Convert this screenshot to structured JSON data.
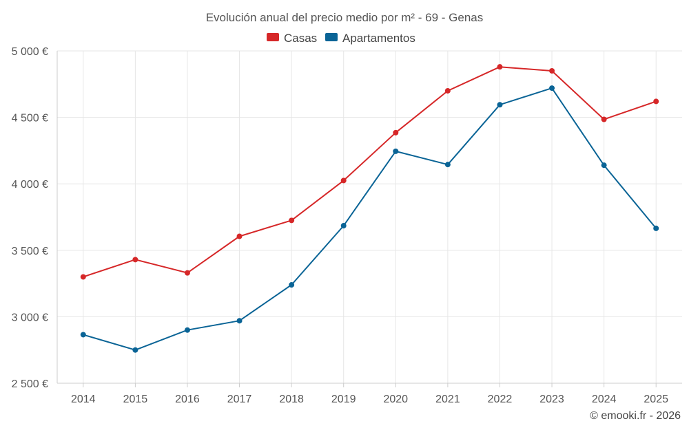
{
  "chart_data": {
    "type": "line",
    "title": "Evolución anual del precio medio por m² - 69 - Genas",
    "categories": [
      "2014",
      "2015",
      "2016",
      "2017",
      "2018",
      "2019",
      "2020",
      "2021",
      "2022",
      "2023",
      "2024",
      "2025"
    ],
    "series": [
      {
        "name": "Casas",
        "color": "#d62728",
        "values": [
          3300,
          3430,
          3330,
          3605,
          3725,
          4025,
          4385,
          4700,
          4880,
          4850,
          4485,
          4620
        ]
      },
      {
        "name": "Apartamentos",
        "color": "#0a6496",
        "values": [
          2865,
          2750,
          2900,
          2970,
          3240,
          3685,
          4245,
          4145,
          4595,
          4720,
          4140,
          3665
        ]
      }
    ],
    "ylim": [
      2500,
      5000
    ],
    "yticks": [
      2500,
      3000,
      3500,
      4000,
      4500,
      5000
    ],
    "ytick_labels": [
      "2 500 €",
      "3 000 €",
      "3 500 €",
      "4 000 €",
      "4 500 €",
      "5 000 €"
    ],
    "xlabel": "",
    "ylabel": "",
    "grid": true,
    "legend_position": "top-center"
  },
  "credit": "© emooki.fr - 2026"
}
